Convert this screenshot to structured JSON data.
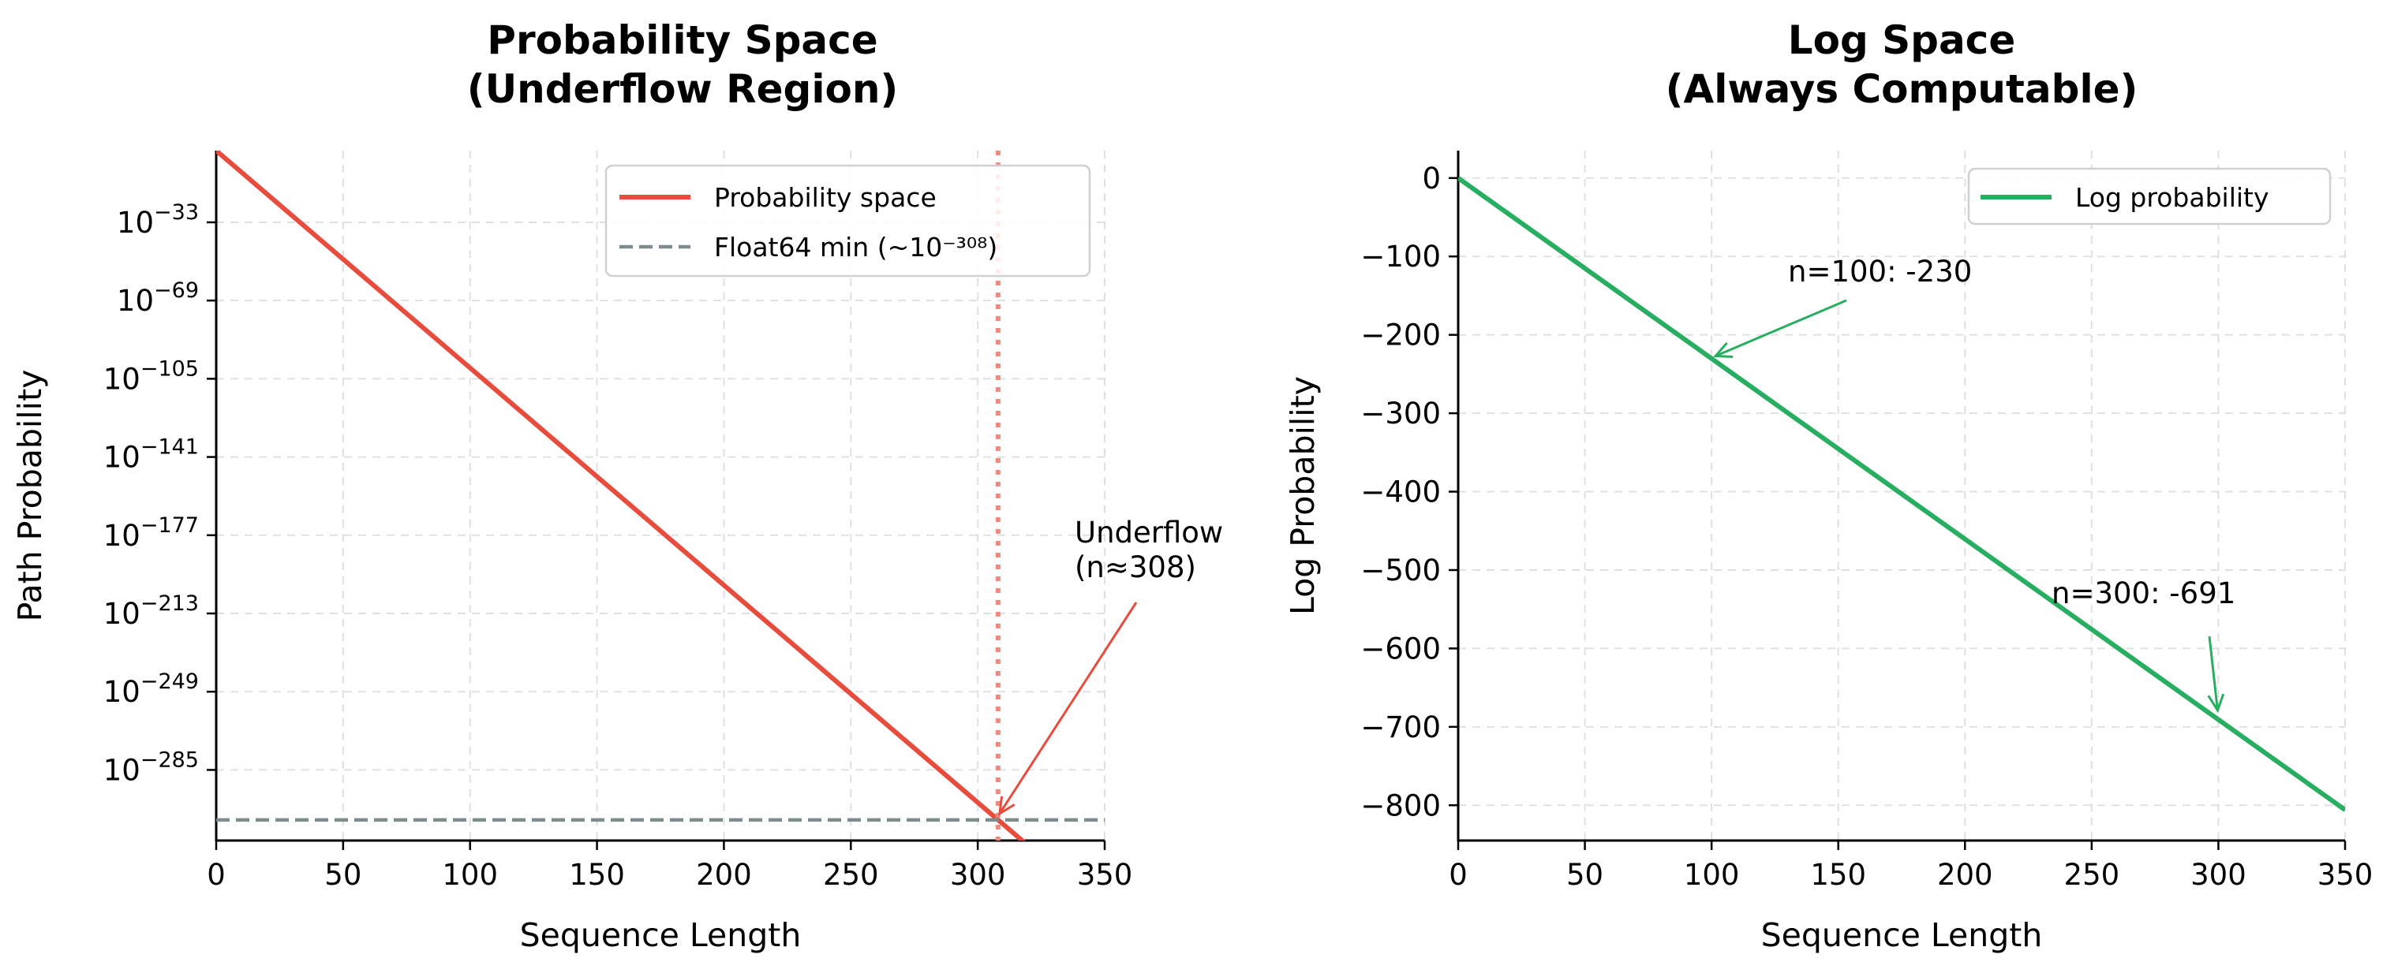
{
  "colors": {
    "probability": "#e74c3c",
    "float_min": "#7f8c8d",
    "underflow_marker": "#f08a80",
    "log": "#27ae60"
  },
  "chart_data": [
    {
      "type": "line",
      "title_lines": [
        "Probability Space",
        "(Underflow Region)"
      ],
      "xlabel": "Sequence Length",
      "ylabel": "Path Probability",
      "xlim": [
        0,
        350
      ],
      "y_scale": "log",
      "ylim_exponent": [
        -317.5,
        0
      ],
      "x_ticks": [
        0,
        50,
        100,
        150,
        200,
        250,
        300,
        350
      ],
      "y_tick_exponents": [
        -33,
        -69,
        -105,
        -141,
        -177,
        -213,
        -249,
        -285
      ],
      "grid": true,
      "legend": {
        "placement": "top-right",
        "entries": [
          "Probability space",
          "Float64 min (~10⁻³⁰⁸)"
        ]
      },
      "series": [
        {
          "name": "Probability space",
          "x": [
            0,
            350
          ],
          "log10_y": [
            0,
            -350
          ],
          "style": "solid"
        },
        {
          "name": "Float64 min (~10⁻³⁰⁸)",
          "log10_y_constant": -308,
          "style": "dashed"
        }
      ],
      "vertical_marker_x": 308,
      "annotations": [
        {
          "lines": [
            "Underflow",
            "(n≈308)"
          ],
          "point": [
            308,
            -308
          ]
        }
      ]
    },
    {
      "type": "line",
      "title_lines": [
        "Log Space",
        "(Always Computable)"
      ],
      "xlabel": "Sequence Length",
      "ylabel": "Log Probability",
      "xlim": [
        0,
        350
      ],
      "ylim": [
        -845,
        35
      ],
      "x_ticks": [
        0,
        50,
        100,
        150,
        200,
        250,
        300,
        350
      ],
      "y_ticks": [
        0,
        -100,
        -200,
        -300,
        -400,
        -500,
        -600,
        -700,
        -800
      ],
      "grid": true,
      "legend": {
        "placement": "top-right",
        "entries": [
          "Log probability"
        ]
      },
      "series": [
        {
          "name": "Log probability",
          "x": [
            0,
            350
          ],
          "y": [
            0,
            -805.9
          ],
          "style": "solid"
        }
      ],
      "annotations": [
        {
          "text": "n=100: -230",
          "point": [
            100,
            -230
          ]
        },
        {
          "text": "n=300: -691",
          "point": [
            300,
            -691
          ]
        }
      ]
    }
  ]
}
